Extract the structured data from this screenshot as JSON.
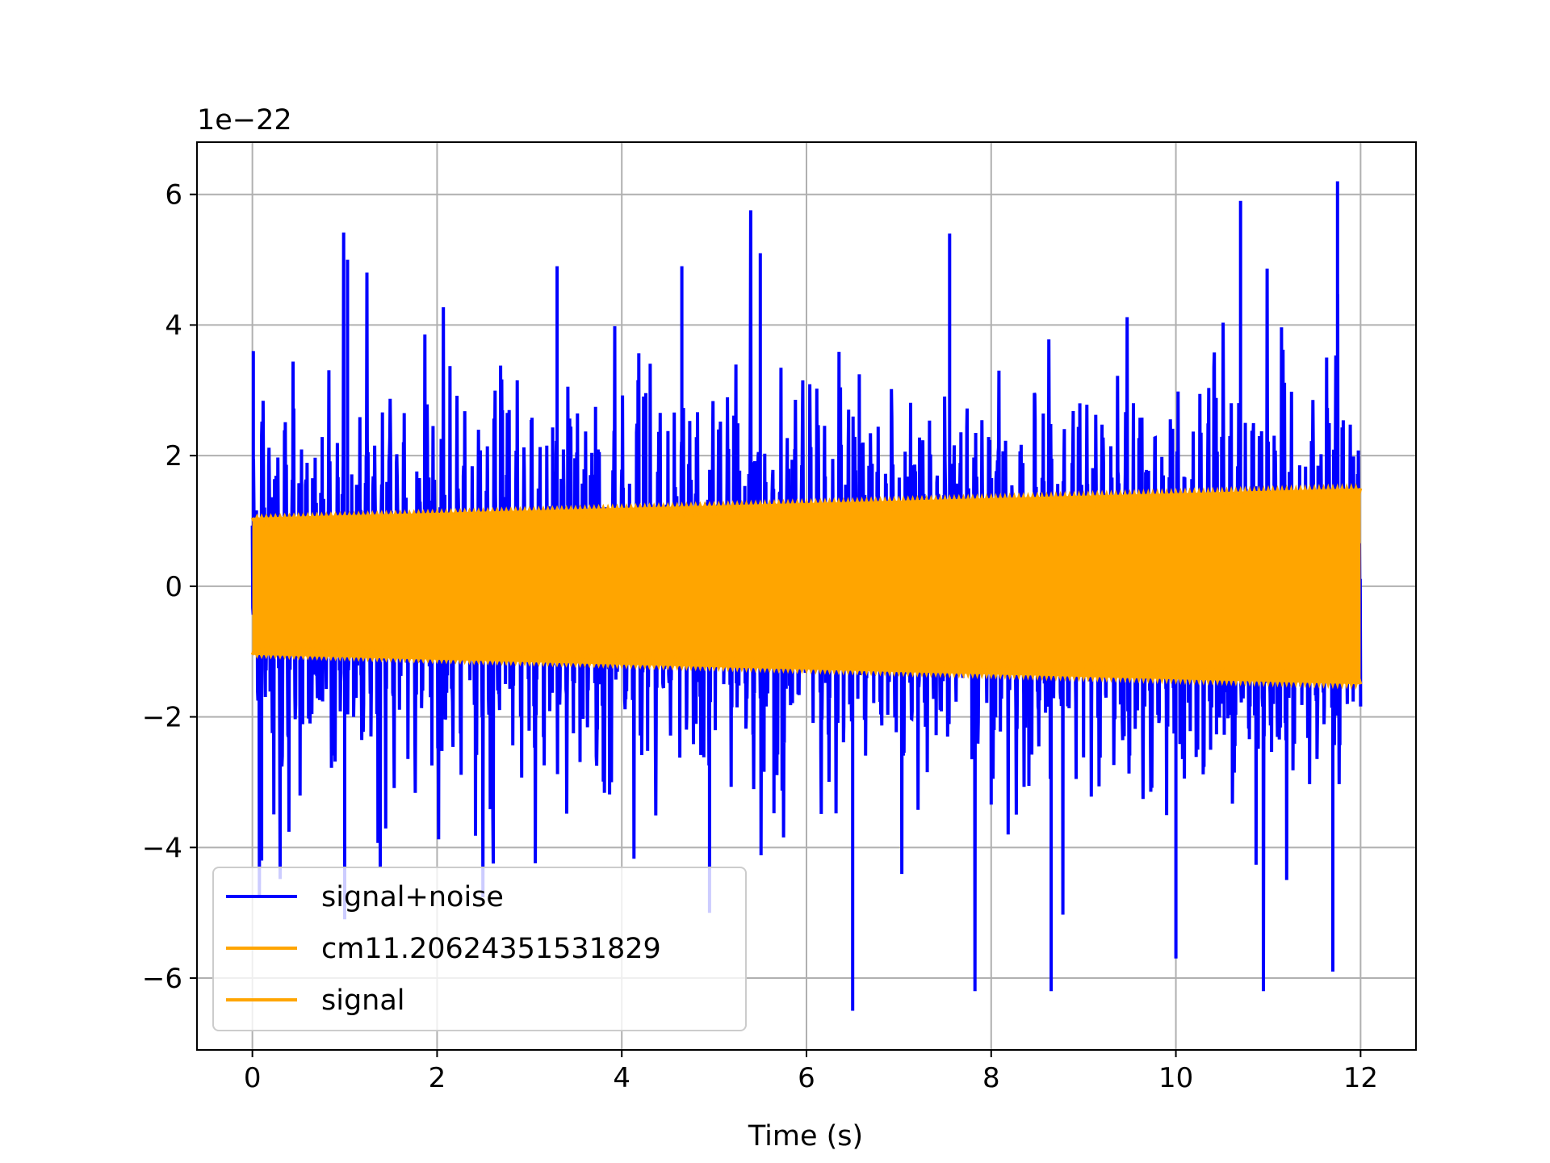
{
  "chart_data": {
    "type": "line",
    "title": "",
    "xlabel": "Time (s)",
    "ylabel": "",
    "y_offset_label": "1e−22",
    "y_scale": 1e-22,
    "xlim": [
      -0.6,
      12.6
    ],
    "ylim": [
      -7.1e-22,
      6.8e-22
    ],
    "grid": true,
    "legend_position": "lower-left",
    "x_ticks": [
      0,
      2,
      4,
      6,
      8,
      10,
      12
    ],
    "x_tick_labels": [
      "0",
      "2",
      "4",
      "6",
      "8",
      "10",
      "12"
    ],
    "y_ticks": [
      -6e-22,
      -4e-22,
      -2e-22,
      0,
      2e-22,
      4e-22,
      6e-22
    ],
    "y_tick_labels": [
      "−6",
      "−4",
      "−2",
      "0",
      "2",
      "4",
      "6"
    ],
    "series": [
      {
        "name": "signal+noise",
        "color": "#0000ff",
        "description_type": "noisy-envelope",
        "x_range": [
          0,
          12
        ],
        "envelope_upper_extremes": [
          [
            0.01,
            3.6e-22
          ],
          [
            1.03,
            5e-22
          ],
          [
            3.3,
            4.9e-22
          ],
          [
            4.65,
            4.9e-22
          ],
          [
            5.5,
            5.1e-22
          ],
          [
            7.55,
            5.4e-22
          ],
          [
            10.7,
            5.9e-22
          ],
          [
            11.75,
            6.2e-22
          ]
        ],
        "envelope_lower_extremes": [
          [
            0.1,
            -4.2e-22
          ],
          [
            1.0,
            -5.1e-22
          ],
          [
            4.95,
            -5e-22
          ],
          [
            6.5,
            -6.5e-22
          ],
          [
            8.65,
            -6.2e-22
          ],
          [
            10.0,
            -5.7e-22
          ],
          [
            11.7,
            -5.9e-22
          ]
        ]
      },
      {
        "name": "cm11.20624351531829",
        "color": "#ffa500",
        "description_type": "oscillation",
        "x_range": [
          0,
          12
        ],
        "amplitude_start": 1.05e-22,
        "amplitude_end": 1.5e-22
      },
      {
        "name": "signal",
        "color": "#ffa500",
        "description_type": "oscillation",
        "x_range": [
          0,
          12
        ],
        "amplitude_start": 1.05e-22,
        "amplitude_end": 1.5e-22
      }
    ]
  }
}
